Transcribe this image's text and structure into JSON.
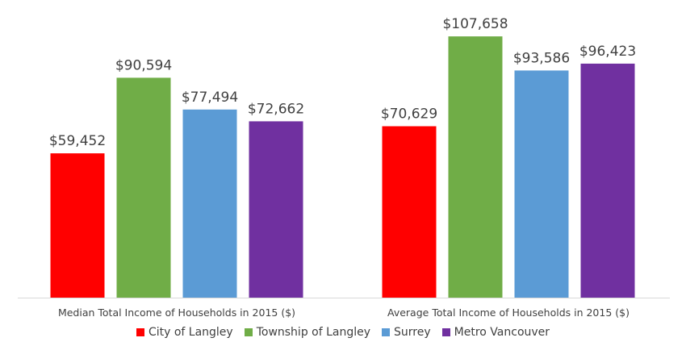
{
  "chart_data": {
    "type": "bar",
    "title": "",
    "xlabel": "",
    "ylabel": "",
    "categories": [
      "Median Total Income of Households in 2015 ($)",
      "Average Total Income of Households in 2015 ($)"
    ],
    "series": [
      {
        "name": "City of Langley",
        "color": "#ff0000",
        "values": [
          59452,
          70629
        ],
        "labels": [
          "$59,452",
          "$70,629"
        ]
      },
      {
        "name": "Township of Langley",
        "color": "#70ad47",
        "values": [
          90594,
          107658
        ],
        "labels": [
          "$90,594",
          "$107,658"
        ]
      },
      {
        "name": "Surrey",
        "color": "#5b9bd5",
        "values": [
          77494,
          93586
        ],
        "labels": [
          "$77,494",
          "$93,586"
        ]
      },
      {
        "name": "Metro Vancouver",
        "color": "#7030a0",
        "values": [
          72662,
          96423
        ],
        "labels": [
          "$72,662",
          "$96,423"
        ]
      }
    ],
    "ylim": [
      0,
      115000
    ],
    "grid": false,
    "legend_position": "bottom"
  }
}
